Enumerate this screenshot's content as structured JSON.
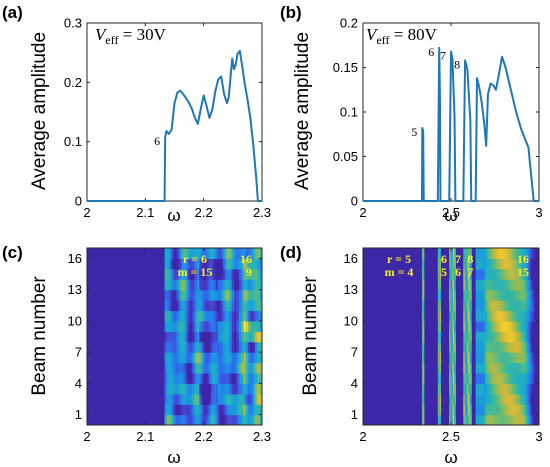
{
  "chart_data": [
    {
      "id": "a",
      "type": "line",
      "panel_label": "(a)",
      "annotation": {
        "prefix": "V",
        "sub": "eff",
        "text": " = 30V"
      },
      "xlabel": "ω",
      "ylabel": "Average amplitude",
      "xlim": [
        2,
        2.3
      ],
      "ylim": [
        0,
        0.3
      ],
      "xticks": [
        2,
        2.1,
        2.2,
        2.3
      ],
      "xtick_labels": [
        "2",
        "2.1",
        "2.2",
        "2.3"
      ],
      "yticks": [
        0,
        0.1,
        0.2,
        0.3
      ],
      "ytick_labels": [
        "0",
        "0.1",
        "0.2",
        "0.3"
      ],
      "grid": false,
      "color": "#1f77b4",
      "x": [
        2.0,
        2.133,
        2.134,
        2.136,
        2.14,
        2.145,
        2.15,
        2.155,
        2.16,
        2.165,
        2.17,
        2.175,
        2.18,
        2.185,
        2.19,
        2.195,
        2.2,
        2.205,
        2.21,
        2.215,
        2.22,
        2.225,
        2.23,
        2.235,
        2.24,
        2.243,
        2.246,
        2.249,
        2.252,
        2.255,
        2.258,
        2.262,
        2.266,
        2.27,
        2.275,
        2.28,
        2.285,
        2.29,
        2.293,
        2.3
      ],
      "y": [
        0.0,
        0.0,
        0.108,
        0.118,
        0.113,
        0.12,
        0.165,
        0.183,
        0.186,
        0.18,
        0.173,
        0.165,
        0.155,
        0.14,
        0.13,
        0.155,
        0.178,
        0.16,
        0.14,
        0.155,
        0.185,
        0.205,
        0.21,
        0.18,
        0.165,
        0.175,
        0.208,
        0.24,
        0.222,
        0.23,
        0.248,
        0.253,
        0.228,
        0.2,
        0.172,
        0.14,
        0.095,
        0.04,
        0.0,
        0.0
      ],
      "point_labels": [
        {
          "text": "6",
          "x": 2.134,
          "y": 0.108
        }
      ]
    },
    {
      "id": "b",
      "type": "line",
      "panel_label": "(b)",
      "annotation": {
        "prefix": "V",
        "sub": "eff",
        "text": " = 80V"
      },
      "xlabel": "ω",
      "ylabel": "Average amplitude",
      "xlim": [
        2,
        3
      ],
      "ylim": [
        0,
        0.2
      ],
      "xticks": [
        2,
        2.5,
        3
      ],
      "xtick_labels": [
        "2",
        "2.5",
        "3"
      ],
      "yticks": [
        0,
        0.05,
        0.1,
        0.15,
        0.2
      ],
      "ytick_labels": [
        "0",
        "0.05",
        "0.1",
        "0.15",
        "0.2"
      ],
      "grid": false,
      "color": "#1f77b4",
      "x": [
        2.0,
        2.335,
        2.337,
        2.342,
        2.345,
        2.425,
        2.433,
        2.437,
        2.44,
        2.49,
        2.5,
        2.508,
        2.52,
        2.525,
        2.57,
        2.58,
        2.593,
        2.61,
        2.615,
        2.64,
        2.648,
        2.66,
        2.675,
        2.69,
        2.7,
        2.71,
        2.725,
        2.74,
        2.755,
        2.77,
        2.79,
        2.81,
        2.84,
        2.87,
        2.9,
        2.94,
        2.95,
        2.97,
        3.0
      ],
      "y": [
        0.0,
        0.0,
        0.082,
        0.078,
        0.0,
        0.0,
        0.172,
        0.12,
        0.0,
        0.0,
        0.168,
        0.16,
        0.095,
        0.0,
        0.0,
        0.158,
        0.148,
        0.09,
        0.0,
        0.0,
        0.138,
        0.128,
        0.11,
        0.085,
        0.062,
        0.12,
        0.132,
        0.13,
        0.125,
        0.14,
        0.162,
        0.15,
        0.125,
        0.1,
        0.08,
        0.06,
        0.04,
        0.0,
        0.0
      ],
      "point_labels": [
        {
          "text": "5",
          "x": 2.337,
          "y": 0.082
        },
        {
          "text": "6",
          "x": 2.433,
          "y": 0.172
        },
        {
          "text": "7",
          "x": 2.5,
          "y": 0.168
        },
        {
          "text": "8",
          "x": 2.58,
          "y": 0.158
        }
      ]
    },
    {
      "id": "c",
      "type": "heatmap",
      "panel_label": "(c)",
      "xlabel": "ω",
      "ylabel": "Beam number",
      "xlim": [
        2,
        2.3
      ],
      "ylim": [
        0,
        17
      ],
      "xticks": [
        2,
        2.1,
        2.2,
        2.3
      ],
      "xtick_labels": [
        "2",
        "2.1",
        "2.2",
        "2.3"
      ],
      "yticks": [
        1,
        4,
        7,
        10,
        13,
        16
      ],
      "ytick_labels": [
        "1",
        "4",
        "7",
        "10",
        "13",
        "16"
      ],
      "colormap": [
        "#3e26a8",
        "#4743ce",
        "#2d6ff0",
        "#1a98e0",
        "#1caccb",
        "#3ab89c",
        "#82bd5f",
        "#d4b83a",
        "#f9d423",
        "#f9fb15"
      ],
      "onset": 2.133,
      "mode_labels": [
        {
          "lines": [
            "r = 6",
            "m = 15"
          ],
          "pos": "left"
        },
        {
          "lines": [
            "16",
            "9"
          ],
          "pos": "right"
        }
      ]
    },
    {
      "id": "d",
      "type": "heatmap",
      "panel_label": "(d)",
      "xlabel": "ω",
      "ylabel": "Beam number",
      "xlim": [
        2,
        3
      ],
      "ylim": [
        0,
        17
      ],
      "xticks": [
        2,
        2.5,
        3
      ],
      "xtick_labels": [
        "2",
        "2.5",
        "3"
      ],
      "yticks": [
        1,
        4,
        7,
        10,
        13,
        16
      ],
      "ytick_labels": [
        "1",
        "4",
        "7",
        "10",
        "13",
        "16"
      ],
      "colormap": [
        "#3e26a8",
        "#4743ce",
        "#2d6ff0",
        "#1a98e0",
        "#1caccb",
        "#3ab89c",
        "#82bd5f",
        "#d4b83a",
        "#f9d423",
        "#f9fb15"
      ],
      "bands": [
        [
          2.335,
          2.345
        ],
        [
          2.425,
          2.44
        ],
        [
          2.49,
          2.525
        ],
        [
          2.57,
          2.615
        ],
        [
          2.64,
          2.97
        ]
      ],
      "mode_labels": [
        {
          "lines": [
            "r = 5",
            "m = 4"
          ],
          "pos": "left"
        },
        {
          "lines": [
            "6",
            "5"
          ],
          "x": 2.46
        },
        {
          "lines": [
            "7",
            "6"
          ],
          "x": 2.54
        },
        {
          "lines": [
            "8",
            "7"
          ],
          "x": 2.61
        },
        {
          "lines": [
            "16",
            "15"
          ],
          "pos": "right"
        }
      ]
    }
  ]
}
